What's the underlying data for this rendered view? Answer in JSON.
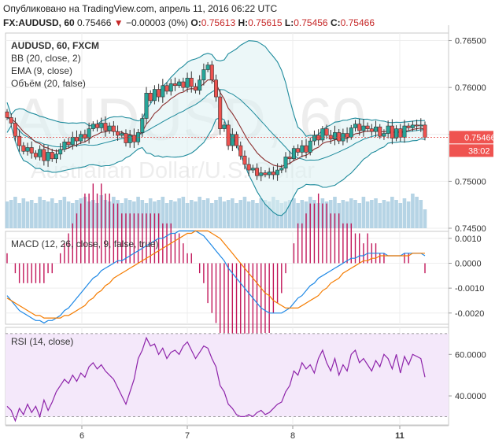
{
  "header": {
    "published": "Опубликовано на TradingView.com, апрель 11, 2016 06:22 UTC",
    "symbol": "FX:AUDUSD, 60",
    "last": "0.75466",
    "change_arrow": "▼",
    "change": "−0.00003 (0%)",
    "o_label": "O:",
    "o_value": "0.75613",
    "h_label": "H:",
    "h_value": "0.75615",
    "l_label": "L:",
    "l_value": "0.75456",
    "c_label": "C:",
    "c_value": "0.75466"
  },
  "colors": {
    "up": "#26a69a",
    "down": "#ef5350",
    "candle_border": "#333333",
    "bb": "#1e8b9c",
    "bb_fill": "#dcf0f2",
    "ema": "#8b2e2e",
    "volume": "#a9cde0",
    "macd": "#1e88e5",
    "signal": "#f57c00",
    "hist": "#c2185b",
    "rsi": "#8e24aa",
    "rsi_fill": "#f4e8fa"
  },
  "chart_data": [
    {
      "type": "candlestick",
      "watermark": "AUDUSD, 60",
      "watermark_sub": "Australian Dollar/U.S. Dollar",
      "legend": [
        "AUDUSD, 60, FXCM",
        "BB (20, close, 2)",
        "EMA (9, close)",
        "Объём (20, false)"
      ],
      "ylim": [
        0.745,
        0.7658
      ],
      "y_ticks": [
        0.765,
        0.76,
        0.755,
        0.75,
        0.745
      ],
      "y_tick_labels": [
        "0.76500",
        "0.76000",
        "0.75500",
        "0.75000",
        "0.74500"
      ],
      "x_tick_labels": [
        "6",
        "7",
        "8",
        "11"
      ],
      "last_price_label": "0.75466",
      "countdown_label": "38:02",
      "closes": [
        0.7568,
        0.7562,
        0.7548,
        0.7538,
        0.7532,
        0.7536,
        0.753,
        0.7526,
        0.7534,
        0.7522,
        0.7531,
        0.7524,
        0.7529,
        0.7534,
        0.7542,
        0.7539,
        0.7547,
        0.7543,
        0.755,
        0.7546,
        0.7556,
        0.7561,
        0.7557,
        0.7562,
        0.7554,
        0.7559,
        0.7553,
        0.7549,
        0.7551,
        0.7541,
        0.7549,
        0.7542,
        0.7552,
        0.7567,
        0.7594,
        0.7586,
        0.7598,
        0.759,
        0.7602,
        0.7596,
        0.7604,
        0.7602,
        0.7606,
        0.76,
        0.761,
        0.7601,
        0.7597,
        0.7608,
        0.7619,
        0.7624,
        0.7608,
        0.759,
        0.7556,
        0.756,
        0.7538,
        0.755,
        0.7538,
        0.7527,
        0.7518,
        0.7512,
        0.7514,
        0.7506,
        0.7509,
        0.7507,
        0.751,
        0.7507,
        0.7512,
        0.7514,
        0.7526,
        0.7524,
        0.7535,
        0.7531,
        0.7538,
        0.7531,
        0.7543,
        0.7549,
        0.7544,
        0.7556,
        0.7549,
        0.7545,
        0.7552,
        0.7543,
        0.7551,
        0.7547,
        0.7557,
        0.7561,
        0.7554,
        0.7559,
        0.7556,
        0.7553,
        0.7558,
        0.7548,
        0.7551,
        0.7559,
        0.7546,
        0.7556,
        0.7547,
        0.7559,
        0.7557,
        0.756,
        0.7559,
        0.756,
        0.7547
      ],
      "volume_scale": [
        0.55,
        0.6,
        0.7,
        0.5,
        0.65,
        0.55,
        0.6,
        0.5,
        0.7,
        0.6,
        0.55,
        0.65,
        0.5,
        0.6,
        0.7,
        0.55,
        0.5,
        0.6,
        0.65,
        0.7,
        0.55,
        0.6,
        0.5,
        0.75,
        0.6,
        0.55,
        0.7,
        0.6,
        0.5,
        0.65,
        0.6,
        0.55,
        0.7,
        0.6,
        0.5,
        0.65,
        0.55,
        0.6,
        0.7,
        0.5,
        0.6,
        0.55,
        0.65,
        0.7,
        0.5,
        0.6,
        0.55,
        0.7,
        0.6,
        0.65,
        0.5,
        0.6,
        0.7,
        0.55,
        0.6,
        0.65,
        0.5,
        0.6,
        0.7,
        0.55,
        0.6,
        0.5,
        0.65,
        0.6,
        0.55,
        0.7,
        0.6,
        0.5,
        0.55,
        0.6,
        0.65,
        0.5,
        0.6,
        0.55,
        0.7,
        0.6,
        0.5,
        0.65,
        0.55,
        0.6,
        0.7,
        0.5,
        0.6,
        0.55,
        0.65,
        0.6,
        0.5,
        0.7,
        0.55,
        0.6,
        0.65,
        0.5,
        0.6,
        0.55,
        0.7,
        0.6,
        0.5,
        0.65,
        0.55,
        0.8,
        0.7,
        0.6,
        0.3
      ]
    },
    {
      "type": "line",
      "legend": "MACD (12, 26, close, 9, false, true)",
      "ylim": [
        -0.00245,
        0.00128
      ],
      "y_ticks": [
        0.001,
        0.0,
        -0.001,
        -0.002
      ],
      "y_tick_labels": [
        "0.0010",
        "0.0000",
        "-0.0010",
        "-0.0020"
      ],
      "series": [
        {
          "role": "macd",
          "values": [
            -0.0013,
            -0.0015,
            -0.0017,
            -0.0019,
            -0.002,
            -0.0021,
            -0.0022,
            -0.0023,
            -0.0023,
            -0.0024,
            -0.0023,
            -0.0023,
            -0.0022,
            -0.0021,
            -0.0019,
            -0.0018,
            -0.0016,
            -0.0014,
            -0.0012,
            -0.001,
            -0.0008,
            -0.0006,
            -0.0005,
            -0.0003,
            -0.0002,
            -0.0001,
            0.0,
            0.0001,
            0.0001,
            0.0002,
            0.0003,
            0.0004,
            0.0005,
            0.0006,
            0.0007,
            0.0008,
            0.0009,
            0.001,
            0.001,
            0.0011,
            0.0012,
            0.0012,
            0.0013,
            0.0013,
            0.0013,
            0.0013,
            0.0013,
            0.0012,
            0.0011,
            0.0009,
            0.0007,
            0.0005,
            0.0003,
            0.0001,
            -0.0002,
            -0.0004,
            -0.0006,
            -0.0008,
            -0.001,
            -0.0012,
            -0.0014,
            -0.0016,
            -0.0018,
            -0.0019,
            -0.002,
            -0.002,
            -0.002,
            -0.002,
            -0.0019,
            -0.0018,
            -0.0016,
            -0.0014,
            -0.0013,
            -0.0011,
            -0.0009,
            -0.0008,
            -0.0006,
            -0.0005,
            -0.0004,
            -0.0003,
            -0.0002,
            -0.0001,
            0.0,
            0.0001,
            0.0002,
            0.0002,
            0.0003,
            0.0003,
            0.0004,
            0.0004,
            0.0004,
            0.0004,
            0.0004,
            0.0003,
            0.0003,
            0.0003,
            0.0003,
            0.0004,
            0.0004,
            0.0004,
            0.0004,
            0.0004,
            0.0003
          ]
        },
        {
          "role": "signal",
          "values": [
            -0.0014,
            -0.0015,
            -0.0016,
            -0.0017,
            -0.0018,
            -0.0019,
            -0.002,
            -0.0021,
            -0.0021,
            -0.0022,
            -0.0022,
            -0.0022,
            -0.0022,
            -0.0022,
            -0.0021,
            -0.0021,
            -0.002,
            -0.0019,
            -0.0018,
            -0.0017,
            -0.0015,
            -0.0014,
            -0.0012,
            -0.0011,
            -0.0009,
            -0.0008,
            -0.0006,
            -0.0005,
            -0.0004,
            -0.0003,
            -0.0002,
            -0.0001,
            0.0,
            0.0001,
            0.0002,
            0.0003,
            0.0004,
            0.0005,
            0.0006,
            0.0007,
            0.0008,
            0.0009,
            0.001,
            0.0011,
            0.0012,
            0.0012,
            0.0013,
            0.0013,
            0.0013,
            0.0013,
            0.0012,
            0.0011,
            0.001,
            0.0008,
            0.0006,
            0.0004,
            0.0002,
            0.0,
            -0.0002,
            -0.0004,
            -0.0006,
            -0.0008,
            -0.001,
            -0.0012,
            -0.0013,
            -0.0015,
            -0.0016,
            -0.0017,
            -0.0018,
            -0.0018,
            -0.0018,
            -0.0018,
            -0.0017,
            -0.0016,
            -0.0015,
            -0.0014,
            -0.0013,
            -0.0011,
            -0.001,
            -0.0008,
            -0.0007,
            -0.0006,
            -0.0004,
            -0.0003,
            -0.0002,
            -0.0001,
            0.0,
            0.0001,
            0.0001,
            0.0002,
            0.0002,
            0.0003,
            0.0003,
            0.0003,
            0.0003,
            0.0003,
            0.0003,
            0.0003,
            0.0003,
            0.0004,
            0.0004,
            0.0004,
            0.0004
          ]
        }
      ]
    },
    {
      "type": "line",
      "legend": "RSI (14, close)",
      "ylim": [
        26,
        73
      ],
      "bands": [
        70,
        30
      ],
      "y_ticks": [
        60,
        40
      ],
      "y_tick_labels": [
        "60.0000",
        "40.0000"
      ],
      "values": [
        35,
        33,
        28,
        34,
        31,
        36,
        32,
        35,
        30,
        38,
        33,
        37,
        42,
        45,
        48,
        46,
        50,
        47,
        51,
        49,
        54,
        56,
        53,
        55,
        52,
        50,
        48,
        44,
        40,
        36,
        42,
        48,
        58,
        62,
        68,
        64,
        65,
        60,
        63,
        58,
        61,
        62,
        60,
        64,
        66,
        62,
        58,
        61,
        64,
        63,
        58,
        54,
        45,
        42,
        36,
        34,
        31,
        30,
        30,
        31,
        30,
        32,
        33,
        31,
        32,
        34,
        36,
        37,
        42,
        45,
        52,
        50,
        56,
        53,
        55,
        51,
        58,
        62,
        56,
        52,
        58,
        50,
        55,
        52,
        60,
        62,
        56,
        58,
        55,
        52,
        57,
        54,
        60,
        58,
        53,
        60,
        51,
        59,
        55,
        60,
        59,
        58,
        49
      ]
    },
    {
      "type": "axis",
      "x_tick_labels": [
        "6",
        "7",
        "8",
        "11"
      ]
    }
  ]
}
